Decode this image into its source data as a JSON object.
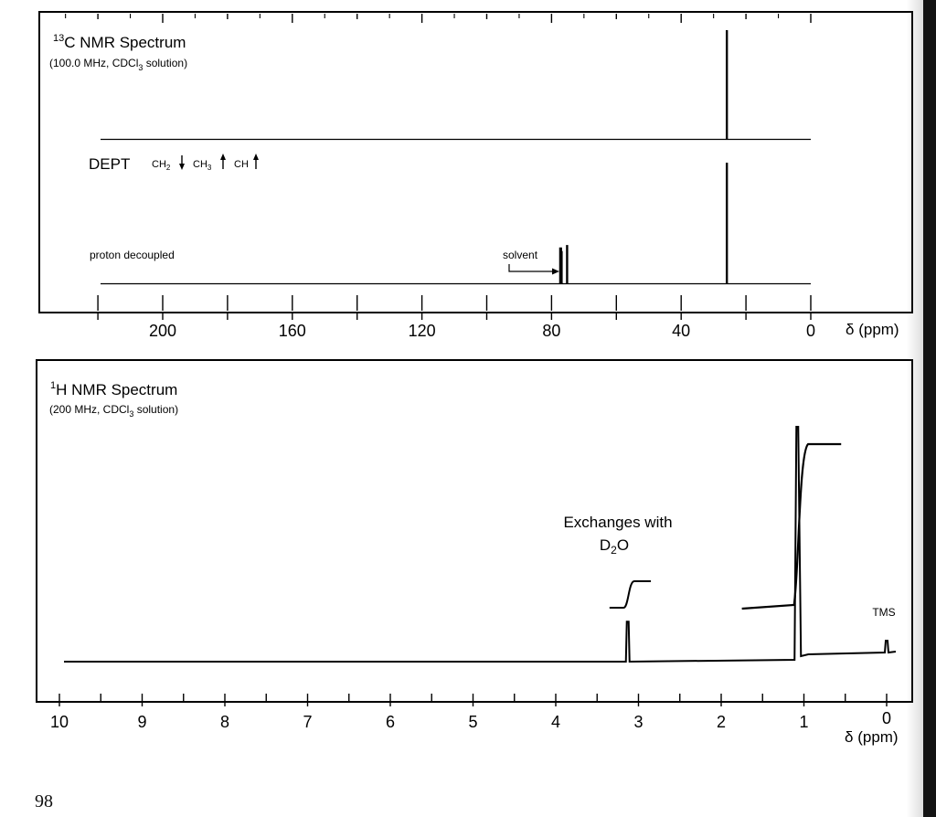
{
  "chart_data": [
    {
      "type": "line",
      "title": "13C NMR Spectrum",
      "subtitle": "(100.0 MHz, CDCl3 solution)",
      "xlabel": "δ (ppm)",
      "xlim": [
        220,
        0
      ],
      "x_reversed": true,
      "tick_labels": [
        "200",
        "160",
        "120",
        "80",
        "40",
        "0"
      ],
      "axis_label_prefix": "δ",
      "axis_label_unit": "(ppm)",
      "sub_spectra": [
        {
          "name": "DEPT",
          "legend": [
            {
              "label": "CH2",
              "arrow": "down"
            },
            {
              "label": "CH3",
              "arrow": "up"
            },
            {
              "label": "CH",
              "arrow": "up"
            }
          ],
          "peaks": [
            {
              "x": 25.9,
              "intensity": 1.0
            }
          ]
        },
        {
          "name": "proton decoupled",
          "peaks": [
            {
              "x": 77.2,
              "intensity": 0.3,
              "label": "solvent"
            },
            {
              "x": 76.9,
              "intensity": 0.27
            },
            {
              "x": 75.2,
              "intensity": 0.32
            },
            {
              "x": 25.9,
              "intensity": 1.0
            }
          ]
        }
      ],
      "annotations": [
        "solvent"
      ]
    },
    {
      "type": "line",
      "title": "1H NMR Spectrum",
      "subtitle": "(200 MHz, CDCl3 solution)",
      "xlabel": "δ (ppm)",
      "xlim": [
        10,
        0
      ],
      "x_reversed": true,
      "tick_labels": [
        "10",
        "9",
        "8",
        "7",
        "6",
        "5",
        "4",
        "3",
        "2",
        "1",
        "0"
      ],
      "axis_label_prefix": "δ",
      "axis_label_unit": "(ppm)",
      "peaks": [
        {
          "x": 3.13,
          "intensity": 0.17,
          "note": "Exchanges with D2O"
        },
        {
          "x": 1.08,
          "intensity": 1.0
        },
        {
          "x": 0.0,
          "intensity": 0.05,
          "label": "TMS"
        }
      ],
      "integrals": [
        {
          "from": 3.35,
          "to": 2.85,
          "step": 0.12
        },
        {
          "from": 1.75,
          "to": 0.55,
          "step": 0.72
        }
      ],
      "annotations": [
        "Exchanges with",
        "D2O",
        "TMS"
      ]
    }
  ],
  "page_number": "98"
}
